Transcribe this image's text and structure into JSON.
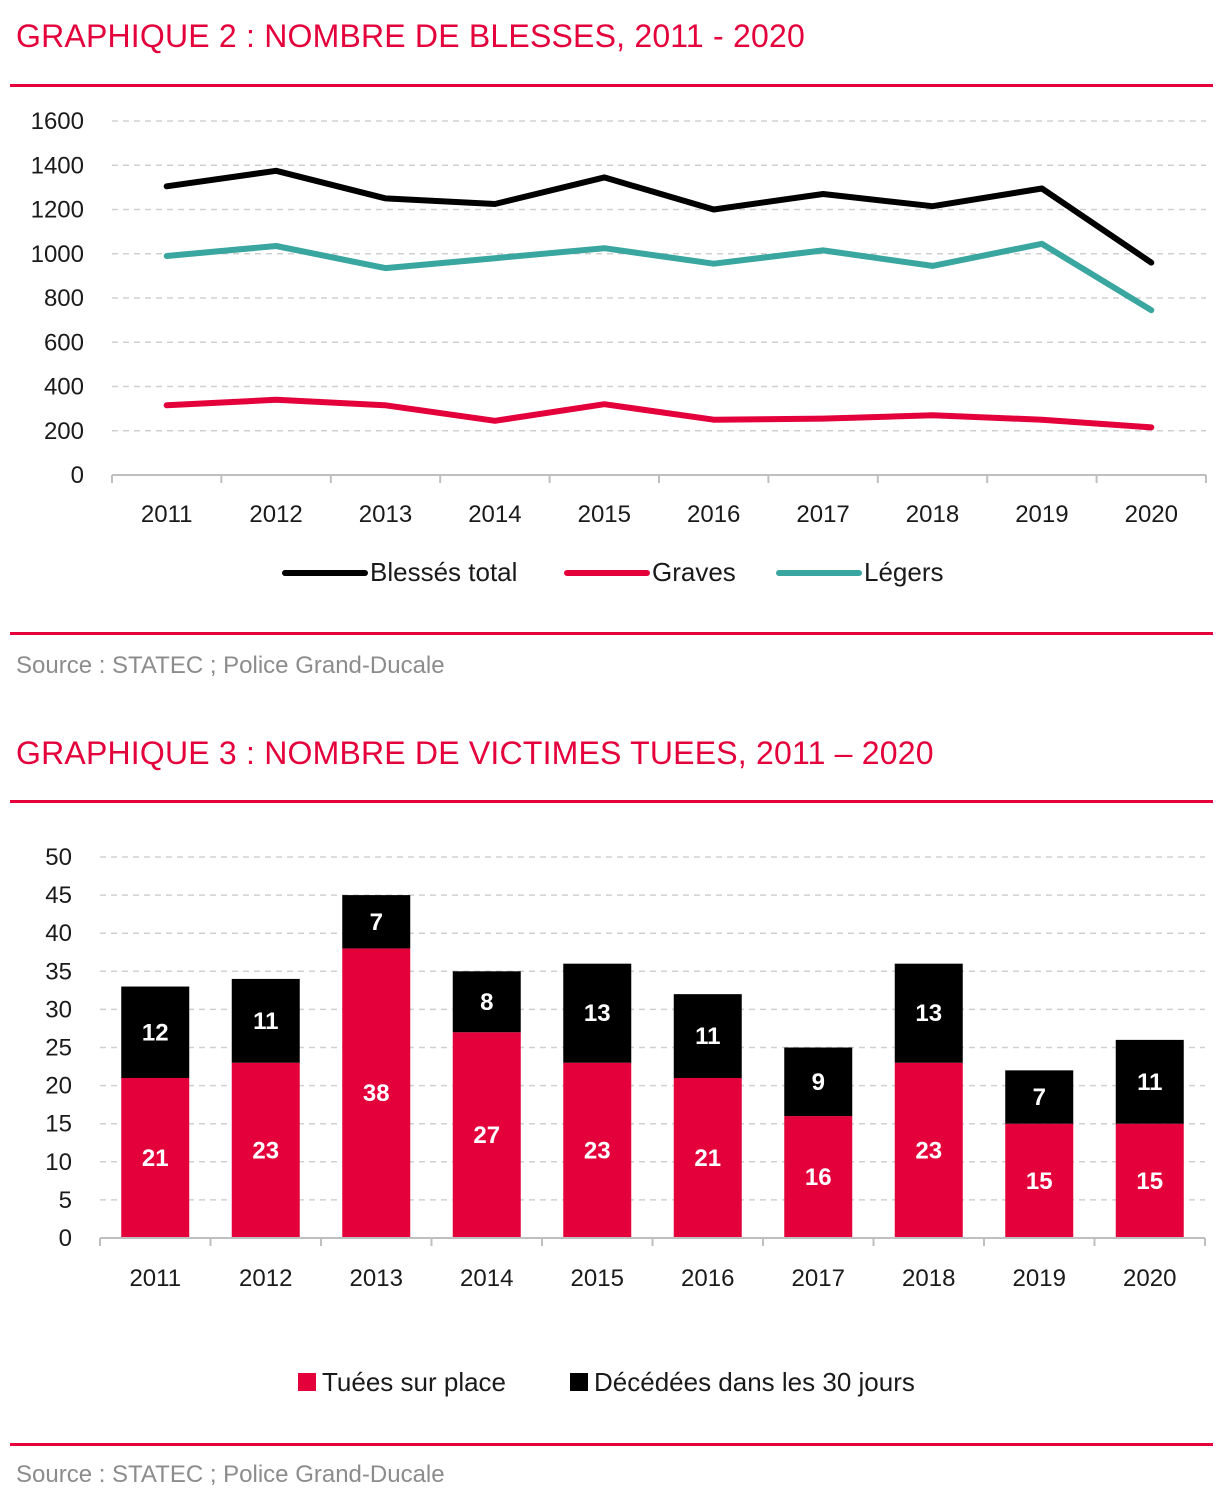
{
  "chart2": {
    "title": "GRAPHIQUE 2 : NOMBRE DE BLESSES, 2011 - 2020",
    "source": "Source : STATEC ; Police Grand-Ducale"
  },
  "chart3": {
    "title": "GRAPHIQUE 3 : NOMBRE DE VICTIMES TUEES, 2011 – 2020",
    "source": "Source : STATEC ; Police Grand-Ducale"
  },
  "colors": {
    "accent": "#e4003b",
    "black": "#000000",
    "teal": "#3aa6a0",
    "grid": "#d0d0d0"
  },
  "chart_data": [
    {
      "type": "line",
      "title": "GRAPHIQUE 2 : NOMBRE DE BLESSES, 2011 - 2020",
      "categories": [
        "2011",
        "2012",
        "2013",
        "2014",
        "2015",
        "2016",
        "2017",
        "2018",
        "2019",
        "2020"
      ],
      "series": [
        {
          "name": "Blessés total",
          "color": "#000000",
          "values": [
            1305,
            1375,
            1250,
            1225,
            1345,
            1200,
            1270,
            1215,
            1295,
            960
          ]
        },
        {
          "name": "Graves",
          "color": "#e4003b",
          "values": [
            315,
            340,
            315,
            245,
            320,
            250,
            255,
            270,
            250,
            215
          ]
        },
        {
          "name": "Légers",
          "color": "#3aa6a0",
          "values": [
            990,
            1035,
            935,
            980,
            1025,
            955,
            1015,
            945,
            1045,
            745
          ]
        }
      ],
      "yticks": [
        0,
        200,
        400,
        600,
        800,
        1000,
        1200,
        1400,
        1600
      ],
      "ylim": [
        0,
        1600
      ],
      "grid": true,
      "legend": "bottom"
    },
    {
      "type": "bar",
      "stacked": true,
      "title": "GRAPHIQUE 3 : NOMBRE DE VICTIMES TUEES, 2011 – 2020",
      "categories": [
        "2011",
        "2012",
        "2013",
        "2014",
        "2015",
        "2016",
        "2017",
        "2018",
        "2019",
        "2020"
      ],
      "series": [
        {
          "name": "Tuées sur place",
          "color": "#e4003b",
          "values": [
            21,
            23,
            38,
            27,
            23,
            21,
            16,
            23,
            15,
            15
          ]
        },
        {
          "name": "Décédées dans les 30 jours",
          "color": "#000000",
          "values": [
            12,
            11,
            7,
            8,
            13,
            11,
            9,
            13,
            7,
            11
          ]
        }
      ],
      "yticks": [
        0,
        5,
        10,
        15,
        20,
        25,
        30,
        35,
        40,
        45,
        50
      ],
      "ylim": [
        0,
        50
      ],
      "grid": true,
      "legend": "bottom"
    }
  ]
}
